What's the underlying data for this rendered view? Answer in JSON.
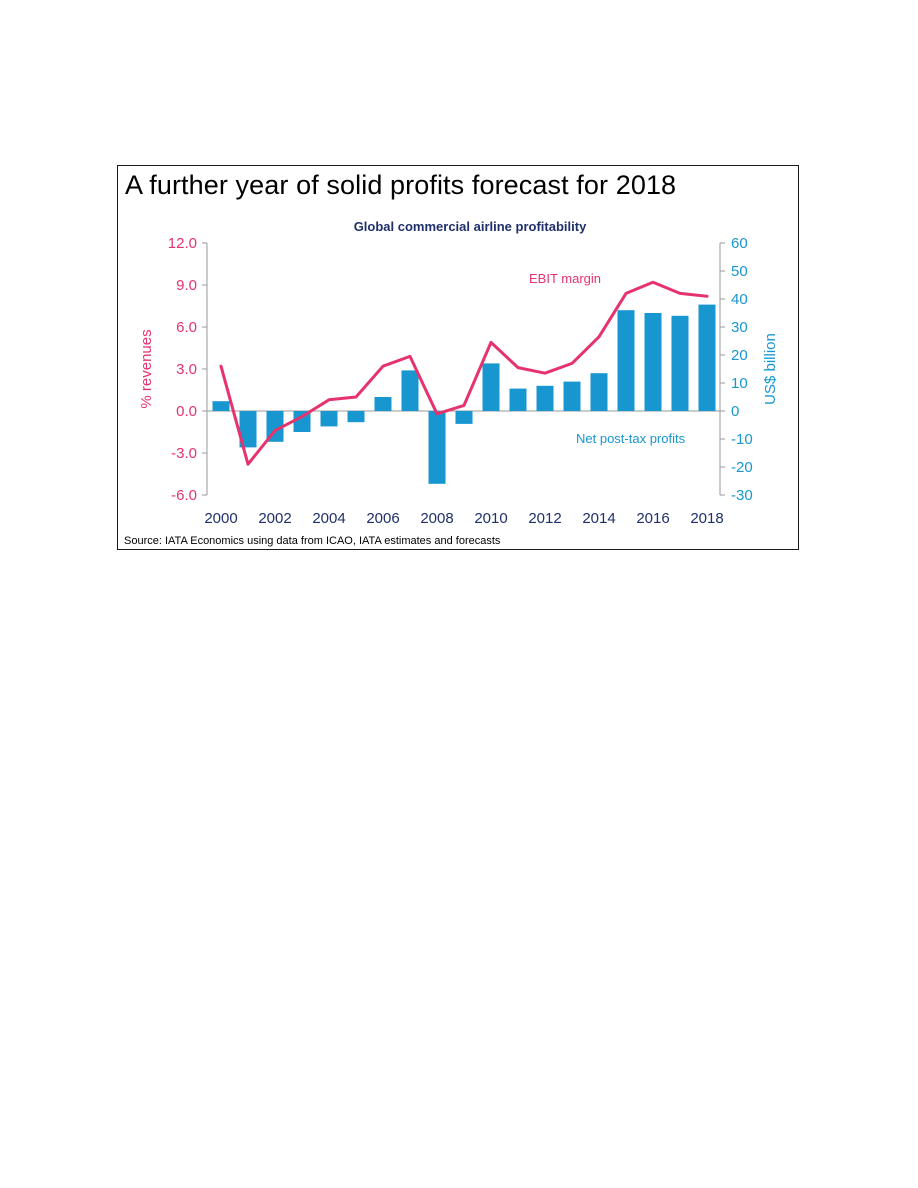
{
  "figure": {
    "headline": "A further year of solid profits forecast for 2018",
    "source": "Source: IATA Economics using data from ICAO, IATA estimates and forecasts"
  },
  "chart_data": {
    "type": "bar+line",
    "title": "Global commercial airline profitability",
    "x": [
      2000,
      2001,
      2002,
      2003,
      2004,
      2005,
      2006,
      2007,
      2008,
      2009,
      2010,
      2011,
      2012,
      2013,
      2014,
      2015,
      2016,
      2017,
      2018
    ],
    "x_tick_labels": [
      "2000",
      "2002",
      "2004",
      "2006",
      "2008",
      "2010",
      "2012",
      "2014",
      "2016",
      "2018"
    ],
    "left_axis": {
      "label": "% revenues",
      "ylim": [
        -6.0,
        12.0
      ],
      "ticks": [
        "12.0",
        "9.0",
        "6.0",
        "3.0",
        "0.0",
        "-3.0",
        "-6.0"
      ],
      "color": "#e6336e"
    },
    "right_axis": {
      "label": "US$ billion",
      "ylim": [
        -30,
        60
      ],
      "ticks": [
        "60",
        "50",
        "40",
        "30",
        "20",
        "10",
        "0",
        "-10",
        "-20",
        "-30"
      ],
      "color": "#1796d0"
    },
    "series": [
      {
        "name": "Net post-tax profits",
        "type": "bar",
        "axis": "right",
        "color": "#1796d0",
        "values": [
          3.5,
          -13.0,
          -11.0,
          -7.5,
          -5.5,
          -4.0,
          5.0,
          14.5,
          -26.0,
          -4.6,
          17.0,
          8.0,
          9.0,
          10.5,
          13.5,
          36.0,
          35.0,
          34.0,
          38.0
        ]
      },
      {
        "name": "EBIT margin",
        "type": "line",
        "axis": "left",
        "color": "#e6336e",
        "values": [
          3.2,
          -3.8,
          -1.4,
          -0.4,
          0.8,
          1.0,
          3.2,
          3.9,
          -0.2,
          0.4,
          4.9,
          3.1,
          2.7,
          3.4,
          5.3,
          8.4,
          9.2,
          8.4,
          8.2
        ]
      }
    ],
    "grid": false,
    "legend": "inline labels"
  }
}
